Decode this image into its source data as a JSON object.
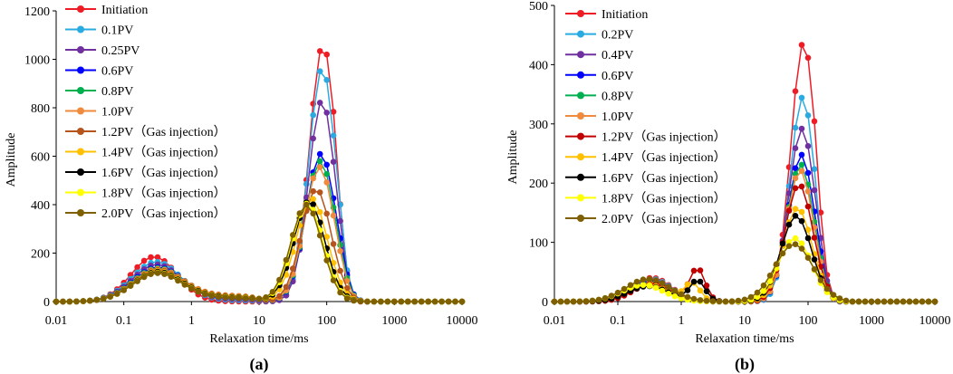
{
  "chart_data": [
    {
      "type": "line",
      "panel_label": "(a)",
      "xlabel": "Relaxation time/ms",
      "ylabel": "Amplitude",
      "xscale": "log",
      "xlim": [
        0.01,
        10000
      ],
      "ylim": [
        0,
        1200
      ],
      "x_ticks": [
        "0.01",
        "0.1",
        "1",
        "10",
        "100",
        "1000",
        "10000"
      ],
      "y_ticks": [
        "0",
        "200",
        "400",
        "600",
        "800",
        "1000",
        "1200"
      ],
      "legend_position": "top-left",
      "series": [
        {
          "name": "Initiation",
          "color": "#ee1c25",
          "p1": 185,
          "c1": 0.28,
          "w1": 0.34,
          "p2": 1060,
          "c2": 88,
          "w2": 0.2,
          "pl": 0,
          "hi": 1.6
        },
        {
          "name": "0.1PV",
          "color": "#29abe2",
          "p1": 160,
          "c1": 0.3,
          "w1": 0.36,
          "p2": 965,
          "c2": 86,
          "w2": 0.2,
          "pl": 5,
          "hi": 1.65
        },
        {
          "name": "0.25PV",
          "color": "#7030a0",
          "p1": 145,
          "c1": 0.3,
          "w1": 0.36,
          "p2": 830,
          "c2": 85,
          "w2": 0.2,
          "pl": 10,
          "hi": 1.65
        },
        {
          "name": "0.6PV",
          "color": "#0000ff",
          "p1": 125,
          "c1": 0.3,
          "w1": 0.37,
          "p2": 610,
          "c2": 82,
          "w2": 0.22,
          "pl": 20,
          "hi": 1.7
        },
        {
          "name": "0.8PV",
          "color": "#00b050",
          "p1": 120,
          "c1": 0.3,
          "w1": 0.37,
          "p2": 580,
          "c2": 80,
          "w2": 0.22,
          "pl": 22,
          "hi": 1.7
        },
        {
          "name": "1.0PV",
          "color": "#f08a3c",
          "p1": 115,
          "c1": 0.3,
          "w1": 0.37,
          "p2": 555,
          "c2": 78,
          "w2": 0.22,
          "pl": 24,
          "hi": 1.7
        },
        {
          "name": "1.2PV（Gas injection）",
          "color": "#b5541c",
          "p1": 112,
          "c1": 0.3,
          "w1": 0.37,
          "p2": 465,
          "c2": 70,
          "w2": 0.22,
          "pl": 22,
          "hi": 1.8
        },
        {
          "name": "1.4PV（Gas injection）",
          "color": "#ffc000",
          "p1": 110,
          "c1": 0.3,
          "w1": 0.37,
          "p2": 425,
          "c2": 60,
          "w2": 0.23,
          "pl": 20,
          "hi": 1.9
        },
        {
          "name": "1.6PV（Gas injection）",
          "color": "#000000",
          "p1": 108,
          "c1": 0.3,
          "w1": 0.37,
          "p2": 415,
          "c2": 55,
          "w2": 0.23,
          "pl": 18,
          "hi": 1.95
        },
        {
          "name": "1.8PV（Gas injection）",
          "color": "#ffff00",
          "p1": 106,
          "c1": 0.3,
          "w1": 0.37,
          "p2": 405,
          "c2": 52,
          "w2": 0.23,
          "pl": 16,
          "hi": 2.0
        },
        {
          "name": "2.0PV（Gas injection）",
          "color": "#7f6000",
          "p1": 105,
          "c1": 0.3,
          "w1": 0.37,
          "p2": 400,
          "c2": 50,
          "w2": 0.23,
          "pl": 15,
          "hi": 2.0
        }
      ]
    },
    {
      "type": "line",
      "panel_label": "(b)",
      "xlabel": "Relaxation time/ms",
      "ylabel": "Amplitude",
      "xscale": "log",
      "xlim": [
        0.01,
        10000
      ],
      "ylim": [
        0,
        500
      ],
      "x_ticks": [
        "0.01",
        "0.1",
        "1",
        "10",
        "100",
        "1000",
        "10000"
      ],
      "y_ticks": [
        "0",
        "100",
        "200",
        "300",
        "400",
        "500"
      ],
      "legend_position": "top-left",
      "series": [
        {
          "name": "Initiation",
          "color": "#ee1c25",
          "p1": 40,
          "c1": 0.35,
          "w1": 0.3,
          "p2": 438,
          "c2": 85,
          "w2": 0.2,
          "pl": 0,
          "hi": 1.6
        },
        {
          "name": "0.2PV",
          "color": "#29abe2",
          "p1": 38,
          "c1": 0.35,
          "w1": 0.3,
          "p2": 345,
          "c2": 82,
          "w2": 0.2,
          "pl": 0,
          "hi": 1.6
        },
        {
          "name": "0.4PV",
          "color": "#7030a0",
          "p1": 36,
          "c1": 0.35,
          "w1": 0.3,
          "p2": 292,
          "c2": 80,
          "w2": 0.21,
          "pl": 0,
          "hi": 1.65
        },
        {
          "name": "0.6PV",
          "color": "#0000ff",
          "p1": 34,
          "c1": 0.35,
          "w1": 0.3,
          "p2": 248,
          "c2": 78,
          "w2": 0.21,
          "pl": 0,
          "hi": 1.65
        },
        {
          "name": "0.8PV",
          "color": "#00b050",
          "p1": 33,
          "c1": 0.35,
          "w1": 0.3,
          "p2": 232,
          "c2": 76,
          "w2": 0.21,
          "pl": 0,
          "hi": 1.7
        },
        {
          "name": "1.0PV",
          "color": "#f08a3c",
          "p1": 32,
          "c1": 0.35,
          "w1": 0.3,
          "p2": 222,
          "c2": 75,
          "w2": 0.21,
          "pl": 0,
          "hi": 1.7
        },
        {
          "name": "1.2PV（Gas injection）",
          "color": "#c00000",
          "p1": 30,
          "c1": 0.35,
          "w1": 0.3,
          "p2": 198,
          "c2": 72,
          "w2": 0.22,
          "pl": 0,
          "hi": 1.75,
          "bump": 55,
          "bc": 1.8
        },
        {
          "name": "1.4PV（Gas injection）",
          "color": "#ffc000",
          "p1": 28,
          "c1": 0.3,
          "w1": 0.32,
          "p2": 158,
          "c2": 68,
          "w2": 0.23,
          "pl": 0,
          "hi": 1.8,
          "bump": 30,
          "bc": 1.5
        },
        {
          "name": "1.6PV（Gas injection）",
          "color": "#000000",
          "p1": 26,
          "c1": 0.3,
          "w1": 0.32,
          "p2": 145,
          "c2": 65,
          "w2": 0.24,
          "pl": 0,
          "hi": 1.85,
          "bump": 35,
          "bc": 1.8
        },
        {
          "name": "1.8PV（Gas injection）",
          "color": "#ffff00",
          "p1": 28,
          "c1": 0.25,
          "w1": 0.33,
          "p2": 107,
          "c2": 62,
          "w2": 0.26,
          "pl": 0,
          "hi": 1.9
        },
        {
          "name": "2.0PV（Gas injection）",
          "color": "#7f6000",
          "p1": 38,
          "c1": 0.3,
          "w1": 0.35,
          "p2": 97,
          "c2": 60,
          "w2": 0.3,
          "pl": 0,
          "hi": 1.95
        }
      ]
    }
  ]
}
